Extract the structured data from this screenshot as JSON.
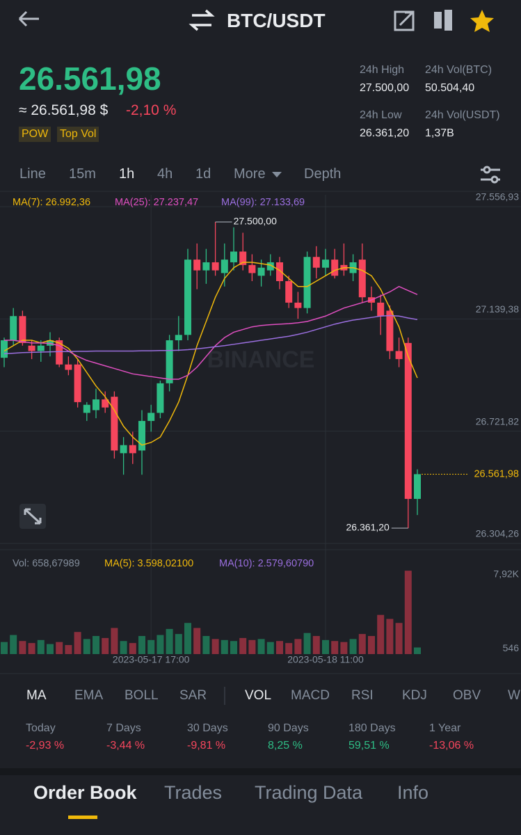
{
  "header": {
    "pair": "BTC/USDT"
  },
  "ticker": {
    "price": "26.561,98",
    "usd": "≈ 26.561,98 $",
    "change": "-2,10 %",
    "tags": [
      "POW",
      "Top Vol"
    ],
    "stats": [
      {
        "label": "24h High",
        "value": "27.500,00"
      },
      {
        "label": "24h Vol(BTC)",
        "value": "50.504,40"
      },
      {
        "label": "24h Low",
        "value": "26.361,20"
      },
      {
        "label": "24h Vol(USDT)",
        "value": "1,37B"
      }
    ]
  },
  "intervals": [
    "Line",
    "15m",
    "1h",
    "4h",
    "1d",
    "More",
    "Depth"
  ],
  "chart_data": {
    "type": "candlestick",
    "watermark": "BINANCE",
    "up_color": "#2ebd85",
    "down_color": "#f6465d",
    "ylim": [
      26281,
      27601
    ],
    "yticks": [
      {
        "value": 27556.93,
        "label": "27.556,93"
      },
      {
        "value": 27139.38,
        "label": "27.139,38"
      },
      {
        "value": 26721.82,
        "label": "26.721,82"
      },
      {
        "value": 26304.26,
        "label": "26.304,26"
      }
    ],
    "xticks": [
      {
        "value": 16,
        "label": "2023-05-17 17:00"
      },
      {
        "value": 35,
        "label": "2023-05-18 11:00"
      }
    ],
    "ohlc": [
      [
        26995,
        27070,
        26960,
        27060
      ],
      [
        27060,
        27180,
        27040,
        27150
      ],
      [
        27150,
        27170,
        27040,
        27050
      ],
      [
        27040,
        27060,
        26990,
        27020
      ],
      [
        27020,
        27060,
        26980,
        27040
      ],
      [
        27040,
        27090,
        27000,
        27060
      ],
      [
        27060,
        27070,
        26960,
        26970
      ],
      [
        26970,
        27000,
        26930,
        26950
      ],
      [
        26970,
        26990,
        26810,
        26830
      ],
      [
        26790,
        26830,
        26760,
        26820
      ],
      [
        26800,
        26880,
        26770,
        26840
      ],
      [
        26840,
        26870,
        26790,
        26810
      ],
      [
        26850,
        26870,
        26620,
        26650
      ],
      [
        26640,
        26700,
        26560,
        26670
      ],
      [
        26670,
        26720,
        26600,
        26640
      ],
      [
        26650,
        26800,
        26560,
        26760
      ],
      [
        26760,
        26820,
        26720,
        26790
      ],
      [
        26790,
        26910,
        26770,
        26900
      ],
      [
        26900,
        27080,
        26870,
        27060
      ],
      [
        27060,
        27150,
        27020,
        27080
      ],
      [
        27080,
        27400,
        27060,
        27360
      ],
      [
        27360,
        27420,
        27250,
        27320
      ],
      [
        27320,
        27400,
        27270,
        27350
      ],
      [
        27350,
        27500,
        27300,
        27320
      ],
      [
        27310,
        27420,
        27260,
        27360
      ],
      [
        27350,
        27480,
        27320,
        27390
      ],
      [
        27390,
        27460,
        27320,
        27340
      ],
      [
        27340,
        27380,
        27280,
        27310
      ],
      [
        27300,
        27360,
        27260,
        27330
      ],
      [
        27320,
        27380,
        27300,
        27350
      ],
      [
        27350,
        27370,
        27250,
        27280
      ],
      [
        27280,
        27300,
        27180,
        27200
      ],
      [
        27200,
        27240,
        27140,
        27180
      ],
      [
        27180,
        27390,
        27160,
        27370
      ],
      [
        27370,
        27410,
        27290,
        27330
      ],
      [
        27330,
        27400,
        27300,
        27360
      ],
      [
        27360,
        27400,
        27290,
        27300
      ],
      [
        27340,
        27420,
        27300,
        27320
      ],
      [
        27310,
        27380,
        27280,
        27350
      ],
      [
        27360,
        27420,
        27200,
        27220
      ],
      [
        27220,
        27260,
        27170,
        27200
      ],
      [
        27200,
        27230,
        27080,
        27150
      ],
      [
        27170,
        27190,
        26990,
        27020
      ],
      [
        27020,
        27070,
        26960,
        26990
      ],
      [
        27050,
        27070,
        26361.2,
        26470
      ],
      [
        26470,
        26580,
        26410,
        26561.98
      ]
    ],
    "series": [
      {
        "name": "MA(7): 26.992,36",
        "color": "#f0b90b",
        "values": [
          27020,
          27040,
          27060,
          27060,
          27050,
          27060,
          27050,
          27030,
          26990,
          26940,
          26890,
          26850,
          26800,
          26740,
          26700,
          26670,
          26680,
          26700,
          26760,
          26830,
          26930,
          27040,
          27130,
          27220,
          27290,
          27330,
          27350,
          27350,
          27345,
          27340,
          27320,
          27290,
          27260,
          27260,
          27280,
          27300,
          27320,
          27330,
          27330,
          27320,
          27300,
          27250,
          27180,
          27110,
          27000,
          26920
        ]
      },
      {
        "name": "MA(25): 27.237,47",
        "color": "#e04fc1",
        "values": [
          27060,
          27060,
          27055,
          27050,
          27050,
          27048,
          27040,
          27020,
          27000,
          26985,
          26975,
          26965,
          26955,
          26945,
          26935,
          26930,
          26925,
          26920,
          26915,
          26915,
          26930,
          26960,
          27000,
          27040,
          27070,
          27090,
          27100,
          27110,
          27115,
          27118,
          27120,
          27122,
          27125,
          27130,
          27140,
          27150,
          27165,
          27180,
          27190,
          27200,
          27210,
          27225,
          27240,
          27260,
          27245,
          27230
        ]
      },
      {
        "name": "MA(99): 27.133,69",
        "color": "#9b6fe0",
        "values": [
          27010,
          27012,
          27014,
          27015,
          27016,
          27017,
          27018,
          27018,
          27019,
          27019,
          27020,
          27020,
          27020,
          27020,
          27020,
          27021,
          27021,
          27022,
          27022,
          27023,
          27025,
          27028,
          27032,
          27036,
          27040,
          27045,
          27050,
          27055,
          27060,
          27065,
          27070,
          27075,
          27082,
          27090,
          27100,
          27110,
          27120,
          27128,
          27135,
          27140,
          27145,
          27150,
          27152,
          27150,
          27143,
          27137
        ]
      }
    ],
    "annotations": {
      "high": {
        "label": "27.500,00",
        "index": 23
      },
      "low": {
        "label": "26.361,20",
        "index": 44
      },
      "last": {
        "label": "26.561,98",
        "index": 45
      }
    },
    "volume": {
      "legend": [
        "Vol: 658,67989",
        "MA(5): 3.598,02100",
        "MA(10): 2.579,60790"
      ],
      "ylim": [
        0,
        8450
      ],
      "yticks": [
        {
          "value": 7920,
          "label": "7,92K"
        },
        546
      ],
      "values": [
        1200,
        1900,
        1300,
        1100,
        1400,
        1000,
        1200,
        900,
        2200,
        1500,
        1800,
        1600,
        2600,
        1300,
        1100,
        1800,
        1400,
        1900,
        2500,
        2000,
        3100,
        2600,
        1800,
        1500,
        1400,
        1300,
        1600,
        1400,
        1500,
        1200,
        1300,
        1100,
        1500,
        2100,
        1800,
        1400,
        1300,
        1200,
        1500,
        2000,
        1800,
        3900,
        3500,
        3100,
        8300,
        658.68
      ]
    }
  },
  "indicators": {
    "main": [
      "MA",
      "EMA",
      "BOLL",
      "SAR"
    ],
    "sub": [
      "VOL",
      "MACD",
      "RSI",
      "KDJ",
      "OBV",
      "W"
    ]
  },
  "performance": [
    {
      "label": "Today",
      "value": "-2,93 %"
    },
    {
      "label": "7 Days",
      "value": "-3,44 %"
    },
    {
      "label": "30 Days",
      "value": "-9,81 %"
    },
    {
      "label": "90 Days",
      "value": "8,25 %"
    },
    {
      "label": "180 Days",
      "value": "59,51 %"
    },
    {
      "label": "1 Year",
      "value": "-13,06 %"
    }
  ],
  "tabs": [
    "Order Book",
    "Trades",
    "Trading Data",
    "Info"
  ]
}
